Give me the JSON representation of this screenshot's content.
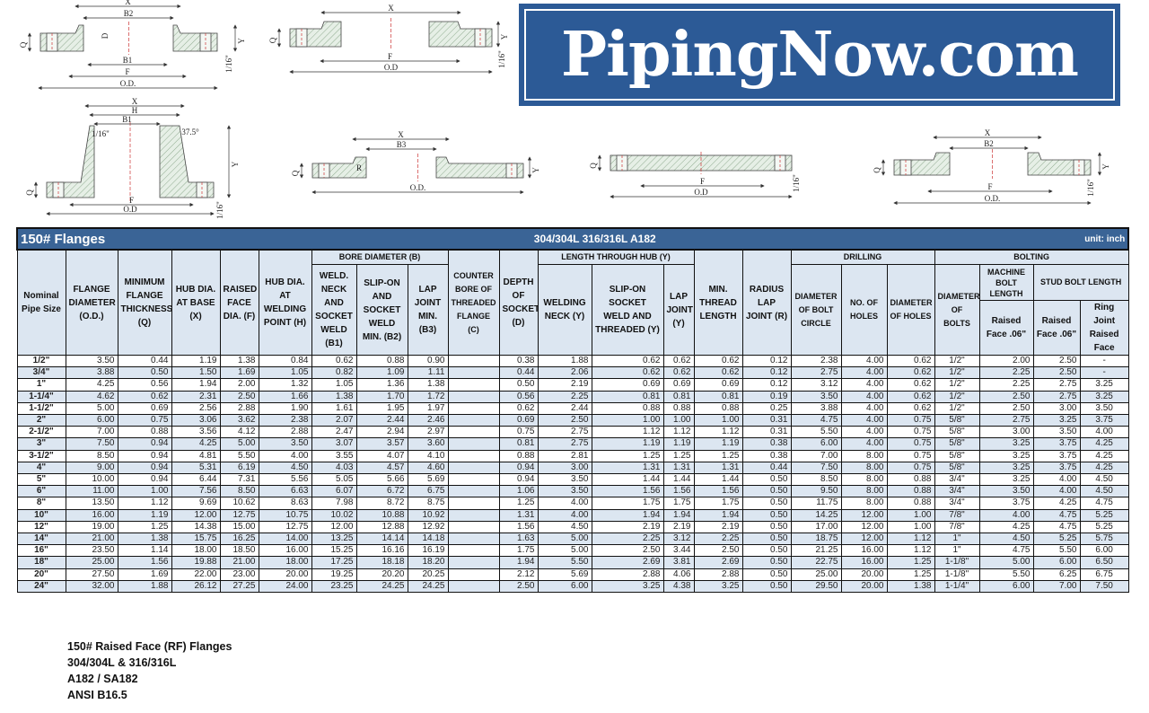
{
  "logo": {
    "text": "PipingNow.com",
    "background": "#2c5a96"
  },
  "diagram_labels": {
    "x": "X",
    "h": "H",
    "b1": "B1",
    "b2": "B2",
    "b3": "B3",
    "f": "F",
    "od": "O.D.",
    "od_alt": "O.D",
    "q": "Q",
    "y": "Y",
    "d": "D",
    "r": "R",
    "sixteenth": "1/16\"",
    "angle": "37.5°"
  },
  "table": {
    "title": "150# Flanges",
    "materials": "304/304L  316/316L  A182",
    "unit": "unit: inch",
    "colors": {
      "title_bar": "#3a6496",
      "header_bg": "#dce6f1",
      "alt_row": "#dce6f1"
    },
    "headers": {
      "nps": "Nominal Pipe Size",
      "od": "FLANGE DIAMETER (O.D.)",
      "q": "MINIMUM FLANGE THICKNESS (Q)",
      "x": "HUB DIA. AT BASE (X)",
      "f": "RAISED FACE DIA. (F)",
      "h": "HUB DIA. AT WELDING POINT (H)",
      "bore": "BORE DIAMETER (B)",
      "b1": "WELD. NECK AND SOCKET WELD (B1)",
      "b2": "SLIP-ON AND SOCKET WELD MIN. (B2)",
      "b3": "LAP JOINT MIN. (B3)",
      "c": "COUNTER BORE OF THREADED FLANGE (C)",
      "d": "DEPTH OF SOCKET (D)",
      "length": "LENGTH THROUGH HUB (Y)",
      "y_wn": "WELDING NECK (Y)",
      "y_so": "SLIP-ON SOCKET WELD AND THREADED (Y)",
      "y_lj": "LAP JOINT (Y)",
      "thread": "MIN. THREAD LENGTH",
      "r": "RADIUS LAP JOINT (R)",
      "drilling": "DRILLING",
      "bolt_circle": "DIAMETER OF BOLT CIRCLE",
      "holes": "NO. OF HOLES",
      "hole_dia": "DIAMETER OF HOLES",
      "bolting": "BOLTING",
      "bolt_dia": "DIAMETER OF BOLTS",
      "machine": "MACHINE BOLT LENGTH",
      "stud": "STUD BOLT LENGTH",
      "machine_rf": "Raised Face .06\"",
      "stud_rf": "Raised Face .06\"",
      "stud_rj": "Ring Joint Raised Face"
    },
    "rows": [
      [
        "1/2\"",
        "3.50",
        "0.44",
        "1.19",
        "1.38",
        "0.84",
        "0.62",
        "0.88",
        "0.90",
        "",
        "0.38",
        "1.88",
        "0.62",
        "0.62",
        "0.62",
        "0.12",
        "2.38",
        "4.00",
        "0.62",
        "1/2\"",
        "2.00",
        "2.50",
        "-"
      ],
      [
        "3/4\"",
        "3.88",
        "0.50",
        "1.50",
        "1.69",
        "1.05",
        "0.82",
        "1.09",
        "1.11",
        "",
        "0.44",
        "2.06",
        "0.62",
        "0.62",
        "0.62",
        "0.12",
        "2.75",
        "4.00",
        "0.62",
        "1/2\"",
        "2.25",
        "2.50",
        "-"
      ],
      [
        "1\"",
        "4.25",
        "0.56",
        "1.94",
        "2.00",
        "1.32",
        "1.05",
        "1.36",
        "1.38",
        "",
        "0.50",
        "2.19",
        "0.69",
        "0.69",
        "0.69",
        "0.12",
        "3.12",
        "4.00",
        "0.62",
        "1/2\"",
        "2.25",
        "2.75",
        "3.25"
      ],
      [
        "1-1/4\"",
        "4.62",
        "0.62",
        "2.31",
        "2.50",
        "1.66",
        "1.38",
        "1.70",
        "1.72",
        "",
        "0.56",
        "2.25",
        "0.81",
        "0.81",
        "0.81",
        "0.19",
        "3.50",
        "4.00",
        "0.62",
        "1/2\"",
        "2.50",
        "2.75",
        "3.25"
      ],
      [
        "1-1/2\"",
        "5.00",
        "0.69",
        "2.56",
        "2.88",
        "1.90",
        "1.61",
        "1.95",
        "1.97",
        "",
        "0.62",
        "2.44",
        "0.88",
        "0.88",
        "0.88",
        "0.25",
        "3.88",
        "4.00",
        "0.62",
        "1/2\"",
        "2.50",
        "3.00",
        "3.50"
      ],
      [
        "2\"",
        "6.00",
        "0.75",
        "3.06",
        "3.62",
        "2.38",
        "2.07",
        "2.44",
        "2.46",
        "",
        "0.69",
        "2.50",
        "1.00",
        "1.00",
        "1.00",
        "0.31",
        "4.75",
        "4.00",
        "0.75",
        "5/8\"",
        "2.75",
        "3.25",
        "3.75"
      ],
      [
        "2-1/2\"",
        "7.00",
        "0.88",
        "3.56",
        "4.12",
        "2.88",
        "2.47",
        "2.94",
        "2.97",
        "",
        "0.75",
        "2.75",
        "1.12",
        "1.12",
        "1.12",
        "0.31",
        "5.50",
        "4.00",
        "0.75",
        "5/8\"",
        "3.00",
        "3.50",
        "4.00"
      ],
      [
        "3\"",
        "7.50",
        "0.94",
        "4.25",
        "5.00",
        "3.50",
        "3.07",
        "3.57",
        "3.60",
        "",
        "0.81",
        "2.75",
        "1.19",
        "1.19",
        "1.19",
        "0.38",
        "6.00",
        "4.00",
        "0.75",
        "5/8\"",
        "3.25",
        "3.75",
        "4.25"
      ],
      [
        "3-1/2\"",
        "8.50",
        "0.94",
        "4.81",
        "5.50",
        "4.00",
        "3.55",
        "4.07",
        "4.10",
        "",
        "0.88",
        "2.81",
        "1.25",
        "1.25",
        "1.25",
        "0.38",
        "7.00",
        "8.00",
        "0.75",
        "5/8\"",
        "3.25",
        "3.75",
        "4.25"
      ],
      [
        "4\"",
        "9.00",
        "0.94",
        "5.31",
        "6.19",
        "4.50",
        "4.03",
        "4.57",
        "4.60",
        "",
        "0.94",
        "3.00",
        "1.31",
        "1.31",
        "1.31",
        "0.44",
        "7.50",
        "8.00",
        "0.75",
        "5/8\"",
        "3.25",
        "3.75",
        "4.25"
      ],
      [
        "5\"",
        "10.00",
        "0.94",
        "6.44",
        "7.31",
        "5.56",
        "5.05",
        "5.66",
        "5.69",
        "",
        "0.94",
        "3.50",
        "1.44",
        "1.44",
        "1.44",
        "0.50",
        "8.50",
        "8.00",
        "0.88",
        "3/4\"",
        "3.25",
        "4.00",
        "4.50"
      ],
      [
        "6\"",
        "11.00",
        "1.00",
        "7.56",
        "8.50",
        "6.63",
        "6.07",
        "6.72",
        "6.75",
        "",
        "1.06",
        "3.50",
        "1.56",
        "1.56",
        "1.56",
        "0.50",
        "9.50",
        "8.00",
        "0.88",
        "3/4\"",
        "3.50",
        "4.00",
        "4.50"
      ],
      [
        "8\"",
        "13.50",
        "1.12",
        "9.69",
        "10.62",
        "8.63",
        "7.98",
        "8.72",
        "8.75",
        "",
        "1.25",
        "4.00",
        "1.75",
        "1.75",
        "1.75",
        "0.50",
        "11.75",
        "8.00",
        "0.88",
        "3/4\"",
        "3.75",
        "4.25",
        "4.75"
      ],
      [
        "10\"",
        "16.00",
        "1.19",
        "12.00",
        "12.75",
        "10.75",
        "10.02",
        "10.88",
        "10.92",
        "",
        "1.31",
        "4.00",
        "1.94",
        "1.94",
        "1.94",
        "0.50",
        "14.25",
        "12.00",
        "1.00",
        "7/8\"",
        "4.00",
        "4.75",
        "5.25"
      ],
      [
        "12\"",
        "19.00",
        "1.25",
        "14.38",
        "15.00",
        "12.75",
        "12.00",
        "12.88",
        "12.92",
        "",
        "1.56",
        "4.50",
        "2.19",
        "2.19",
        "2.19",
        "0.50",
        "17.00",
        "12.00",
        "1.00",
        "7/8\"",
        "4.25",
        "4.75",
        "5.25"
      ],
      [
        "14\"",
        "21.00",
        "1.38",
        "15.75",
        "16.25",
        "14.00",
        "13.25",
        "14.14",
        "14.18",
        "",
        "1.63",
        "5.00",
        "2.25",
        "3.12",
        "2.25",
        "0.50",
        "18.75",
        "12.00",
        "1.12",
        "1\"",
        "4.50",
        "5.25",
        "5.75"
      ],
      [
        "16\"",
        "23.50",
        "1.14",
        "18.00",
        "18.50",
        "16.00",
        "15.25",
        "16.16",
        "16.19",
        "",
        "1.75",
        "5.00",
        "2.50",
        "3.44",
        "2.50",
        "0.50",
        "21.25",
        "16.00",
        "1.12",
        "1\"",
        "4.75",
        "5.50",
        "6.00"
      ],
      [
        "18\"",
        "25.00",
        "1.56",
        "19.88",
        "21.00",
        "18.00",
        "17.25",
        "18.18",
        "18.20",
        "",
        "1.94",
        "5.50",
        "2.69",
        "3.81",
        "2.69",
        "0.50",
        "22.75",
        "16.00",
        "1.25",
        "1-1/8\"",
        "5.00",
        "6.00",
        "6.50"
      ],
      [
        "20\"",
        "27.50",
        "1.69",
        "22.00",
        "23.00",
        "20.00",
        "19.25",
        "20.20",
        "20.25",
        "",
        "2.12",
        "5.69",
        "2.88",
        "4.06",
        "2.88",
        "0.50",
        "25.00",
        "20.00",
        "1.25",
        "1-1/8\"",
        "5.50",
        "6.25",
        "6.75"
      ],
      [
        "24\"",
        "32.00",
        "1.88",
        "26.12",
        "27.25",
        "24.00",
        "23.25",
        "24.25",
        "24.25",
        "",
        "2.50",
        "6.00",
        "3.25",
        "4.38",
        "3.25",
        "0.50",
        "29.50",
        "20.00",
        "1.38",
        "1-1/4\"",
        "6.00",
        "7.00",
        "7.50"
      ]
    ]
  },
  "footer": {
    "lines": [
      "150# Raised Face (RF) Flanges",
      "304/304L & 316/316L",
      "A182 / SA182",
      "ANSI B16.5"
    ]
  }
}
